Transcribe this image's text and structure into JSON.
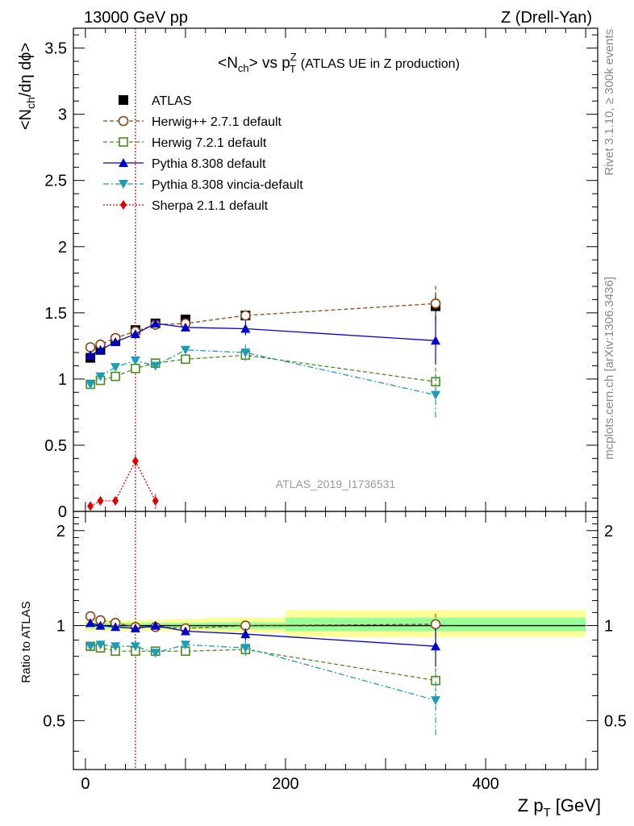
{
  "header": {
    "left": "13000 GeV pp",
    "right": "Z (Drell-Yan)"
  },
  "side_labels": {
    "rivet": "Rivet 3.1.10, ≥ 300k events",
    "mcplots": "mcplots.cern.ch [arXiv:1306.3436]"
  },
  "analysis_id": "ATLAS_2019_I1736531",
  "chart_data": [
    {
      "type": "scatter",
      "panel": "main",
      "title": {
        "lhs_main": "<N",
        "lhs_sub": "ch",
        "mid": "> vs p",
        "rhs_sup": "Z",
        "rhs_sub": "T",
        "suffix": "(ATLAS UE in Z production)"
      },
      "ylabel": {
        "a": "<N",
        "a_sub": "ch",
        "b": "/dη dϕ>"
      },
      "xlim": [
        -12,
        512
      ],
      "ylim": [
        0,
        3.65
      ],
      "yticks": [
        0,
        0.5,
        1,
        1.5,
        2,
        2.5,
        3,
        3.5
      ],
      "ytick_labels": [
        "0",
        "0.5",
        "1",
        "1.5",
        "2",
        "2.5",
        "3",
        "3.5"
      ],
      "legend_position": "top-left",
      "x": [
        5,
        15,
        30,
        50,
        70,
        100,
        160,
        350
      ],
      "series": [
        {
          "name": "ATLAS",
          "color": "#000000",
          "marker": "square-filled",
          "line": "none",
          "values": [
            1.16,
            1.22,
            1.29,
            1.37,
            1.42,
            1.45,
            1.48,
            1.55
          ],
          "errors": [
            0.02,
            0.02,
            0.02,
            0.02,
            0.02,
            0.02,
            0.03,
            0.1
          ]
        },
        {
          "name": "Herwig++ 2.7.1 default",
          "color": "#8B4513",
          "marker": "circle-open",
          "line": "dashed",
          "values": [
            1.24,
            1.26,
            1.31,
            1.36,
            1.41,
            1.42,
            1.48,
            1.57
          ],
          "errors": [
            0.01,
            0.01,
            0.01,
            0.02,
            0.02,
            0.02,
            0.05,
            0.14
          ]
        },
        {
          "name": "Herwig 7.2.1 default",
          "color": "#4C8C1A",
          "marker": "square-open",
          "line": "dashed",
          "values": [
            0.96,
            0.99,
            1.02,
            1.08,
            1.12,
            1.15,
            1.18,
            0.98
          ],
          "errors": [
            0.01,
            0.01,
            0.01,
            0.02,
            0.02,
            0.02,
            0.04,
            0.12
          ]
        },
        {
          "name": "Pythia 8.308 default",
          "color": "#0000CC",
          "marker": "triangle-up-filled",
          "line": "solid",
          "values": [
            1.18,
            1.22,
            1.28,
            1.34,
            1.42,
            1.39,
            1.38,
            1.29
          ],
          "errors": [
            0.01,
            0.01,
            0.01,
            0.02,
            0.02,
            0.02,
            0.05,
            0.18
          ]
        },
        {
          "name": "Pythia 8.308 vincia-default",
          "color": "#1C9CB8",
          "marker": "triangle-down-filled",
          "line": "dashdot",
          "values": [
            0.96,
            1.02,
            1.09,
            1.14,
            1.1,
            1.22,
            1.2,
            0.88
          ],
          "errors": [
            0.01,
            0.01,
            0.01,
            0.02,
            0.02,
            0.02,
            0.06,
            0.17
          ]
        },
        {
          "name": "Sherpa 2.1.1 default",
          "color": "#E00000",
          "marker": "diamond-filled",
          "line": "dotted",
          "values": [
            0.04,
            0.08,
            0.08,
            0.38,
            0.08
          ],
          "x_override": [
            5,
            15,
            30,
            50,
            70
          ],
          "errors": [
            0.01,
            0.02,
            0.03,
            0.04,
            0.06
          ]
        }
      ],
      "annotations": [
        {
          "text": "vertical dotted line",
          "x": 50
        }
      ]
    },
    {
      "type": "scatter",
      "panel": "ratio",
      "ylabel": "Ratio to ATLAS",
      "xlabel": {
        "a": "Z p",
        "a_sub": "T",
        "b": "[GeV]"
      },
      "xlim": [
        -12,
        512
      ],
      "ylim": [
        0.35,
        2.3
      ],
      "yscale": "log",
      "xticks": [
        0,
        200,
        400
      ],
      "xtick_labels": [
        "0",
        "200",
        "400"
      ],
      "yticks": [
        0.5,
        1,
        2
      ],
      "ytick_labels": [
        "0.5",
        "1",
        "2"
      ],
      "bands": [
        {
          "x0": 0,
          "x1": 10,
          "yellow": [
            0.96,
            1.04
          ],
          "green": [
            0.98,
            1.02
          ]
        },
        {
          "x0": 10,
          "x1": 20,
          "yellow": [
            0.96,
            1.04
          ],
          "green": [
            0.98,
            1.02
          ]
        },
        {
          "x0": 20,
          "x1": 40,
          "yellow": [
            0.96,
            1.04
          ],
          "green": [
            0.98,
            1.02
          ]
        },
        {
          "x0": 40,
          "x1": 60,
          "yellow": [
            0.96,
            1.04
          ],
          "green": [
            0.98,
            1.02
          ]
        },
        {
          "x0": 60,
          "x1": 80,
          "yellow": [
            0.96,
            1.04
          ],
          "green": [
            0.98,
            1.02
          ]
        },
        {
          "x0": 80,
          "x1": 120,
          "yellow": [
            0.96,
            1.05
          ],
          "green": [
            0.98,
            1.02
          ]
        },
        {
          "x0": 120,
          "x1": 200,
          "yellow": [
            0.95,
            1.06
          ],
          "green": [
            0.975,
            1.025
          ]
        },
        {
          "x0": 200,
          "x1": 500,
          "yellow": [
            0.92,
            1.12
          ],
          "green": [
            0.96,
            1.06
          ]
        }
      ],
      "x": [
        5,
        15,
        30,
        50,
        70,
        100,
        160,
        350
      ],
      "series": [
        {
          "name": "Herwig++ 2.7.1 default",
          "color": "#8B4513",
          "marker": "circle-open",
          "line": "dashed",
          "values": [
            1.07,
            1.04,
            1.02,
            0.99,
            0.99,
            0.98,
            1.0,
            1.01
          ],
          "errors": [
            0.01,
            0.01,
            0.01,
            0.01,
            0.01,
            0.01,
            0.03,
            0.09
          ]
        },
        {
          "name": "Herwig 7.2.1 default",
          "color": "#4C8C1A",
          "marker": "square-open",
          "line": "dashed",
          "values": [
            0.86,
            0.85,
            0.83,
            0.83,
            0.83,
            0.83,
            0.84,
            0.67
          ],
          "errors": [
            0.01,
            0.01,
            0.01,
            0.01,
            0.01,
            0.01,
            0.03,
            0.08
          ]
        },
        {
          "name": "Pythia 8.308 default",
          "color": "#0000CC",
          "marker": "triangle-up-filled",
          "line": "solid",
          "values": [
            1.02,
            1.0,
            0.99,
            0.98,
            1.0,
            0.96,
            0.94,
            0.86
          ],
          "errors": [
            0.01,
            0.01,
            0.01,
            0.01,
            0.01,
            0.01,
            0.04,
            0.12
          ]
        },
        {
          "name": "Pythia 8.308 vincia-default",
          "color": "#1C9CB8",
          "marker": "triangle-down-filled",
          "line": "dashdot",
          "values": [
            0.86,
            0.87,
            0.86,
            0.86,
            0.82,
            0.87,
            0.85,
            0.58
          ],
          "errors": [
            0.01,
            0.01,
            0.01,
            0.01,
            0.01,
            0.01,
            0.05,
            0.13
          ]
        }
      ]
    }
  ]
}
